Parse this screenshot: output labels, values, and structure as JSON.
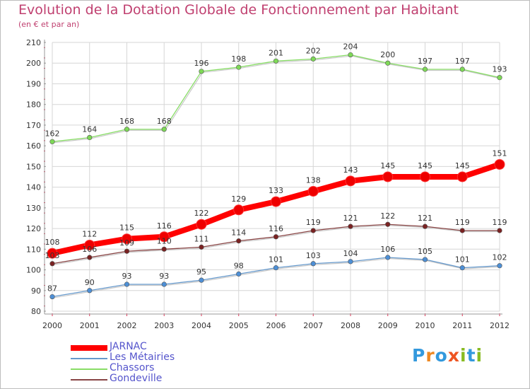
{
  "colors": {
    "title": "#c04070",
    "grid": "#d6d6d6",
    "axis": "#999999",
    "tick_marks": "#dd3355",
    "legend_text": "#5555cc"
  },
  "chart_data": {
    "type": "line",
    "title": "Evolution de la Dotation Globale de Fonctionnement par Habitant",
    "subtitle": "(en € et par an)",
    "xlabel": "",
    "ylabel": "",
    "x": [
      "2000",
      "2001",
      "2002",
      "2003",
      "2004",
      "2005",
      "2006",
      "2007",
      "2008",
      "2009",
      "2010",
      "2011",
      "2012"
    ],
    "ylim": [
      80,
      210
    ],
    "yticks": [
      80,
      90,
      100,
      110,
      120,
      130,
      140,
      150,
      160,
      170,
      180,
      190,
      200,
      210
    ],
    "grid": true,
    "legend_position": "bottom-left",
    "series": [
      {
        "name": "JARNAC",
        "color": "#ff0000",
        "marker_color": "#ee0000",
        "width": "thick",
        "values": [
          108,
          112,
          115,
          116,
          122,
          129,
          133,
          138,
          143,
          145,
          145,
          145,
          151
        ]
      },
      {
        "name": "Les Métairies",
        "color": "#6699cc",
        "marker_color": "#4d8fd6",
        "width": "thin",
        "values": [
          87,
          90,
          93,
          93,
          95,
          98,
          101,
          103,
          104,
          106,
          105,
          101,
          102
        ]
      },
      {
        "name": "Chassors",
        "color": "#88dd66",
        "marker_color": "#7ed957",
        "width": "thin",
        "values": [
          162,
          164,
          168,
          168,
          196,
          198,
          201,
          202,
          204,
          200,
          197,
          197,
          193
        ]
      },
      {
        "name": "Gondeville",
        "color": "#884444",
        "marker_color": "#7a2222",
        "width": "thin",
        "values": [
          103,
          106,
          109,
          110,
          111,
          114,
          116,
          119,
          121,
          122,
          121,
          119,
          119
        ]
      }
    ]
  },
  "logo": {
    "letters": [
      {
        "ch": "P",
        "color": "#3399dd"
      },
      {
        "ch": "r",
        "color": "#ee8822"
      },
      {
        "ch": "o",
        "color": "#3399dd"
      },
      {
        "ch": "x",
        "color": "#ee5522"
      },
      {
        "ch": "i",
        "color": "#88bb22"
      },
      {
        "ch": "t",
        "color": "#3399dd"
      },
      {
        "ch": "i",
        "color": "#88bb22"
      }
    ]
  }
}
